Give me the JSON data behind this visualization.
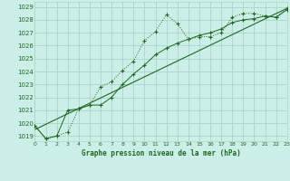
{
  "line1_x": [
    0,
    1,
    2,
    3,
    4,
    5,
    6,
    7,
    8,
    9,
    10,
    11,
    12,
    13,
    14,
    15,
    16,
    17,
    18,
    19,
    20,
    21,
    22,
    23
  ],
  "line1_y": [
    1019.8,
    1018.8,
    1019.0,
    1019.3,
    1021.1,
    1021.4,
    1022.8,
    1023.2,
    1024.1,
    1024.8,
    1026.4,
    1027.1,
    1028.4,
    1027.7,
    1026.5,
    1026.7,
    1026.7,
    1027.0,
    1028.2,
    1028.5,
    1028.5,
    1028.3,
    1028.2,
    1028.9
  ],
  "line2_x": [
    0,
    1,
    2,
    3,
    4,
    5,
    6,
    7,
    8,
    9,
    10,
    11,
    12,
    13,
    14,
    15,
    16,
    17,
    18,
    19,
    20,
    21,
    22,
    23
  ],
  "line2_y": [
    1019.8,
    1018.8,
    1019.0,
    1021.0,
    1021.1,
    1021.4,
    1021.4,
    1022.0,
    1023.0,
    1023.8,
    1024.5,
    1025.3,
    1025.8,
    1026.2,
    1026.5,
    1026.8,
    1027.0,
    1027.3,
    1027.8,
    1028.0,
    1028.1,
    1028.3,
    1028.2,
    1028.8
  ],
  "line3_x": [
    0,
    23
  ],
  "line3_y": [
    1019.5,
    1028.9
  ],
  "xlim": [
    0,
    23
  ],
  "ylim": [
    1018.6,
    1029.4
  ],
  "yticks": [
    1019,
    1020,
    1021,
    1022,
    1023,
    1024,
    1025,
    1026,
    1027,
    1028,
    1029
  ],
  "xticks": [
    0,
    1,
    2,
    3,
    4,
    5,
    6,
    7,
    8,
    9,
    10,
    11,
    12,
    13,
    14,
    15,
    16,
    17,
    18,
    19,
    20,
    21,
    22,
    23
  ],
  "xlabel": "Graphe pression niveau de la mer (hPa)",
  "bg_color": "#cceee8",
  "grid_color": "#aad4cc",
  "line_color": "#1a6b1a",
  "text_color": "#1a6b1a"
}
